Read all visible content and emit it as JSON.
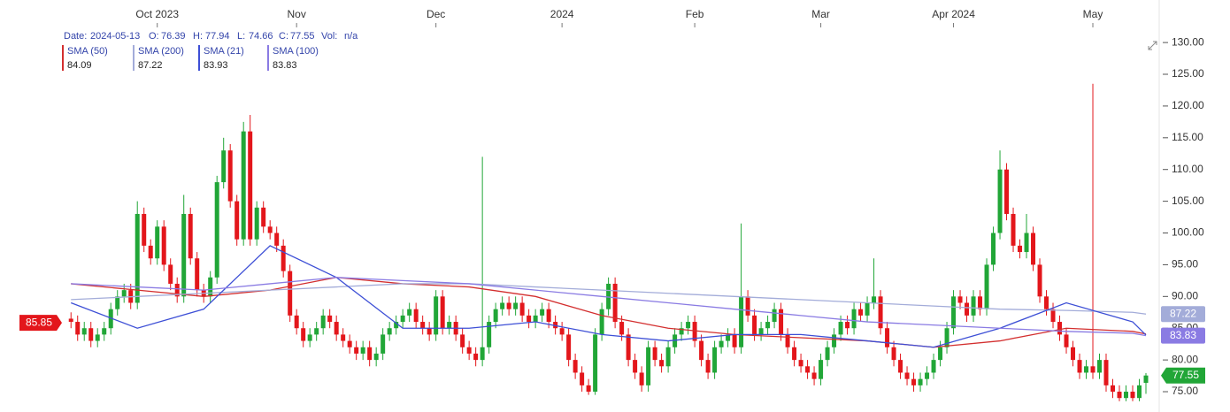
{
  "chart_data": {
    "type": "candlestick",
    "info": {
      "date_label": "Date:",
      "date": "2024-05-13",
      "open_label": "O:",
      "high_label": "H:",
      "low_label": "L:",
      "close_label": "C:",
      "vol_label": "Vol:",
      "vol": "n/a"
    },
    "up_color": "#21a637",
    "down_color": "#e3161b",
    "ylim": [
      71.8,
      136.7
    ],
    "xlim": [
      -10.7,
      164
    ],
    "yticks": [
      {
        "value": 75,
        "label": "75.00"
      },
      {
        "value": 80,
        "label": "80.00"
      },
      {
        "value": 85,
        "label": "85.00"
      },
      {
        "value": 90,
        "label": "90.00"
      },
      {
        "value": 95,
        "label": "95.00"
      },
      {
        "value": 100,
        "label": "100.00"
      },
      {
        "value": 105,
        "label": "105.00"
      },
      {
        "value": 110,
        "label": "110.00"
      },
      {
        "value": 115,
        "label": "115.00"
      },
      {
        "value": 120,
        "label": "120.00"
      },
      {
        "value": 125,
        "label": "125.00"
      },
      {
        "value": 130,
        "label": "130.00"
      }
    ],
    "xticks": [
      {
        "value": 13,
        "label": "Oct 2023"
      },
      {
        "value": 34,
        "label": "Nov"
      },
      {
        "value": 55,
        "label": "Dec"
      },
      {
        "value": 74,
        "label": "2024"
      },
      {
        "value": 94,
        "label": "Feb"
      },
      {
        "value": 113,
        "label": "Mar"
      },
      {
        "value": 133,
        "label": "Apr 2024"
      },
      {
        "value": 154,
        "label": "May"
      }
    ],
    "left_marker": {
      "value": 85.85,
      "color": "#e3161b"
    },
    "ohlc": [
      [
        86.5,
        87.5,
        85,
        86
      ],
      [
        86,
        87,
        83,
        84
      ],
      [
        84,
        86,
        83,
        85
      ],
      [
        85,
        86,
        82,
        83
      ],
      [
        83,
        85,
        82,
        84
      ],
      [
        84,
        86,
        83,
        85
      ],
      [
        85,
        89,
        84,
        88
      ],
      [
        88,
        91,
        87,
        90
      ],
      [
        90,
        92,
        89,
        91
      ],
      [
        91,
        92,
        88,
        89
      ],
      [
        89,
        105,
        88,
        103
      ],
      [
        103,
        104,
        97,
        98
      ],
      [
        98,
        99,
        95,
        96
      ],
      [
        96,
        102,
        95,
        101
      ],
      [
        101,
        102,
        94,
        95
      ],
      [
        95,
        96,
        91,
        92
      ],
      [
        92,
        93,
        89,
        90
      ],
      [
        90,
        106,
        89,
        103
      ],
      [
        103,
        104,
        95,
        96
      ],
      [
        96,
        97,
        90,
        91
      ],
      [
        91,
        92,
        89,
        90
      ],
      [
        90,
        94,
        89,
        93
      ],
      [
        93,
        109,
        92,
        108
      ],
      [
        108,
        115,
        107,
        113
      ],
      [
        113,
        114,
        104,
        105
      ],
      [
        105,
        106,
        98,
        99
      ],
      [
        99,
        117.5,
        98,
        116
      ],
      [
        116,
        118.6,
        98,
        99
      ],
      [
        99,
        105,
        98,
        104
      ],
      [
        104,
        105,
        100,
        101
      ],
      [
        101,
        102,
        99,
        100
      ],
      [
        100,
        101,
        97,
        98
      ],
      [
        98,
        99,
        93,
        94
      ],
      [
        94,
        95,
        86,
        87
      ],
      [
        87,
        88,
        84,
        85
      ],
      [
        85,
        86,
        82,
        83
      ],
      [
        83,
        85,
        82,
        84
      ],
      [
        84,
        86,
        83,
        85
      ],
      [
        85,
        88,
        84,
        87
      ],
      [
        87,
        88,
        85,
        86
      ],
      [
        86,
        87,
        83,
        84
      ],
      [
        84,
        85,
        82,
        83
      ],
      [
        83,
        84,
        81,
        82
      ],
      [
        82,
        83,
        80,
        81
      ],
      [
        81,
        83,
        80,
        82
      ],
      [
        82,
        83,
        79,
        80
      ],
      [
        80,
        82,
        79,
        81
      ],
      [
        81,
        85,
        80,
        84
      ],
      [
        84,
        86,
        83,
        85
      ],
      [
        85,
        87,
        84,
        86
      ],
      [
        86,
        88,
        85,
        87
      ],
      [
        87,
        89,
        86,
        88
      ],
      [
        88,
        89,
        85,
        86
      ],
      [
        86,
        87,
        84,
        85
      ],
      [
        85,
        86,
        83,
        84
      ],
      [
        84,
        91,
        83,
        90
      ],
      [
        90,
        91,
        84,
        85
      ],
      [
        85,
        87,
        84,
        86
      ],
      [
        86,
        87,
        83,
        84
      ],
      [
        84,
        85,
        81,
        82
      ],
      [
        82,
        83,
        80,
        81
      ],
      [
        81,
        82,
        79,
        80
      ],
      [
        80,
        112,
        79,
        82
      ],
      [
        82,
        87,
        81,
        86
      ],
      [
        86,
        89,
        85,
        88
      ],
      [
        88,
        90,
        87,
        89
      ],
      [
        89,
        90,
        87,
        88
      ],
      [
        88,
        90,
        87,
        89
      ],
      [
        89,
        90,
        86,
        87
      ],
      [
        87,
        88,
        85,
        86
      ],
      [
        86,
        88,
        85,
        87
      ],
      [
        87,
        89,
        86,
        88
      ],
      [
        88,
        89,
        85,
        86
      ],
      [
        86,
        87,
        84,
        85
      ],
      [
        85,
        86,
        83,
        84
      ],
      [
        84,
        85,
        79,
        80
      ],
      [
        80,
        81,
        77,
        78
      ],
      [
        78,
        79,
        75,
        76
      ],
      [
        76,
        77,
        74.5,
        75
      ],
      [
        75,
        85,
        74.5,
        84
      ],
      [
        84,
        89,
        83,
        88
      ],
      [
        88,
        93,
        87,
        92
      ],
      [
        92,
        93,
        85,
        86
      ],
      [
        86,
        87,
        83,
        84
      ],
      [
        84,
        85,
        79,
        80
      ],
      [
        80,
        81,
        77,
        78
      ],
      [
        78,
        79,
        75,
        76
      ],
      [
        76,
        83,
        75,
        82
      ],
      [
        82,
        83,
        79,
        80
      ],
      [
        80,
        81,
        78,
        79
      ],
      [
        79,
        83,
        78,
        82
      ],
      [
        82,
        85,
        81,
        84
      ],
      [
        84,
        86,
        83,
        85
      ],
      [
        85,
        87,
        84,
        86
      ],
      [
        86,
        87,
        82,
        83
      ],
      [
        83,
        84,
        79,
        80
      ],
      [
        80,
        81,
        77,
        78
      ],
      [
        78,
        83,
        77,
        82
      ],
      [
        82,
        84,
        81,
        83
      ],
      [
        83,
        85,
        82,
        84
      ],
      [
        84,
        85,
        81,
        82
      ],
      [
        82,
        101.5,
        81,
        90
      ],
      [
        90,
        91,
        86,
        87
      ],
      [
        87,
        88,
        83,
        84
      ],
      [
        84,
        86,
        83,
        85
      ],
      [
        85,
        87,
        84,
        86
      ],
      [
        86,
        89,
        85,
        88
      ],
      [
        88,
        89,
        83,
        84
      ],
      [
        84,
        85,
        81,
        82
      ],
      [
        82,
        83,
        79,
        80
      ],
      [
        80,
        81,
        78,
        79
      ],
      [
        79,
        80,
        77,
        78
      ],
      [
        78,
        79,
        76,
        77
      ],
      [
        77,
        81,
        76,
        80
      ],
      [
        80,
        83,
        79,
        82
      ],
      [
        82,
        85,
        81,
        84
      ],
      [
        84,
        87,
        83,
        86
      ],
      [
        86,
        87,
        84,
        85
      ],
      [
        85,
        89,
        84,
        88
      ],
      [
        88,
        89,
        86,
        87
      ],
      [
        87,
        90,
        86,
        89
      ],
      [
        89,
        96,
        88,
        90
      ],
      [
        90,
        91,
        84,
        85
      ],
      [
        85,
        86,
        81,
        82
      ],
      [
        82,
        83,
        79,
        80
      ],
      [
        80,
        81,
        77,
        78
      ],
      [
        78,
        79,
        76,
        77
      ],
      [
        77,
        78,
        75,
        76
      ],
      [
        76,
        78,
        75,
        77
      ],
      [
        77,
        79,
        76,
        78
      ],
      [
        78,
        81,
        77,
        80
      ],
      [
        80,
        83,
        79,
        82
      ],
      [
        82,
        86,
        81,
        85
      ],
      [
        85,
        91,
        84,
        90
      ],
      [
        90,
        91,
        88,
        89
      ],
      [
        89,
        90,
        86,
        87
      ],
      [
        87,
        91,
        86,
        90
      ],
      [
        90,
        91,
        87,
        88
      ],
      [
        88,
        96,
        87,
        95
      ],
      [
        95,
        101,
        94,
        100
      ],
      [
        100,
        113,
        99,
        110
      ],
      [
        110,
        111,
        102,
        103
      ],
      [
        103,
        104,
        97,
        98
      ],
      [
        98,
        99,
        96,
        97
      ],
      [
        97,
        103,
        96,
        100
      ],
      [
        100,
        101,
        94,
        95
      ],
      [
        95,
        96,
        89,
        90
      ],
      [
        90,
        91,
        87,
        88
      ],
      [
        88,
        89,
        85,
        86
      ],
      [
        86,
        87,
        83,
        84
      ],
      [
        84,
        85,
        81,
        82
      ],
      [
        82,
        83,
        79,
        80
      ],
      [
        80,
        81,
        77,
        78
      ],
      [
        78,
        80,
        77,
        79
      ],
      [
        79,
        123.5,
        77,
        78
      ],
      [
        78,
        81,
        77,
        80
      ],
      [
        80,
        81,
        75,
        76
      ],
      [
        76,
        77,
        74,
        75
      ],
      [
        75,
        76,
        73.5,
        74
      ],
      [
        74,
        76,
        73.5,
        75
      ],
      [
        75,
        76,
        73.5,
        74
      ],
      [
        74,
        77,
        73.5,
        76
      ],
      [
        76.39,
        77.94,
        74.66,
        77.55
      ]
    ],
    "series": [
      {
        "name": "SMA (50)",
        "color": "#d32f2f",
        "x": [
          0,
          10,
          20,
          30,
          40,
          50,
          60,
          70,
          80,
          90,
          100,
          110,
          120,
          130,
          140,
          150,
          160,
          162
        ],
        "values": [
          92,
          91,
          90,
          91,
          93,
          92,
          91.5,
          90,
          87,
          85,
          84,
          83.5,
          83,
          82,
          83,
          85,
          84.5,
          84.09
        ]
      },
      {
        "name": "SMA (200)",
        "color": "#a3acd9",
        "right_label": true,
        "x": [
          0,
          10,
          20,
          30,
          40,
          50,
          60,
          70,
          80,
          90,
          100,
          110,
          120,
          130,
          140,
          150,
          160,
          162
        ],
        "values": [
          89.5,
          90,
          90.5,
          91,
          91.5,
          92,
          92,
          91.5,
          91,
          90.5,
          90,
          89.5,
          89,
          88.5,
          88,
          87.8,
          87.5,
          87.22
        ]
      },
      {
        "name": "SMA (21)",
        "color": "#3d4fd6",
        "x": [
          0,
          10,
          20,
          30,
          40,
          50,
          60,
          70,
          80,
          90,
          100,
          110,
          120,
          130,
          140,
          150,
          160,
          162
        ],
        "values": [
          89,
          85,
          88,
          98,
          93,
          85,
          85,
          86,
          84,
          83,
          84,
          84,
          83,
          82,
          85,
          89,
          86,
          83.93
        ]
      },
      {
        "name": "SMA (100)",
        "color": "#8a7be3",
        "right_label": true,
        "x": [
          0,
          10,
          20,
          30,
          40,
          50,
          60,
          70,
          80,
          90,
          100,
          110,
          120,
          130,
          140,
          150,
          160,
          162
        ],
        "values": [
          92,
          91.5,
          91,
          92,
          93,
          92.5,
          92,
          91,
          90,
          89,
          88,
          87,
          86,
          85.5,
          85,
          84.5,
          84.2,
          83.83
        ]
      }
    ]
  }
}
